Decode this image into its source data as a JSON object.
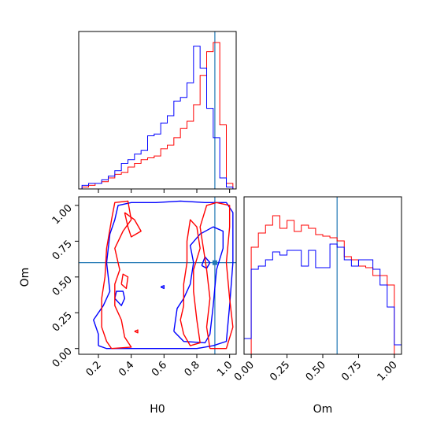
{
  "colors": {
    "series_a": "#ff0000",
    "series_b": "#0000ff",
    "truth": "#1f77b4",
    "axes": "#000000"
  },
  "chart_data": [
    {
      "panel": "H0 marginal",
      "type": "histogram",
      "x_range": [
        0.08,
        1.04
      ],
      "truth_x": 0.91,
      "bin_edges": [
        0.1,
        0.14,
        0.18,
        0.22,
        0.26,
        0.3,
        0.34,
        0.38,
        0.42,
        0.46,
        0.5,
        0.54,
        0.58,
        0.62,
        0.66,
        0.7,
        0.74,
        0.78,
        0.82,
        0.86,
        0.9,
        0.94,
        0.98,
        1.02
      ],
      "series": [
        {
          "color": "#ff0000",
          "values": [
            1,
            2,
            3,
            4,
            6,
            8,
            9,
            12,
            14,
            16,
            17,
            18,
            22,
            24,
            28,
            33,
            37,
            46,
            62,
            75,
            80,
            35,
            3
          ]
        },
        {
          "color": "#0000ff",
          "values": [
            2,
            3,
            3,
            5,
            7,
            10,
            14,
            16,
            19,
            21,
            29,
            30,
            36,
            40,
            48,
            50,
            58,
            78,
            66,
            44,
            28,
            6,
            1
          ]
        }
      ],
      "y_max": 86
    },
    {
      "panel": "Om vs H0 joint",
      "type": "contour",
      "x_range": [
        0.08,
        1.04
      ],
      "y_range": [
        -0.04,
        1.06
      ],
      "truth": {
        "x": 0.91,
        "y": 0.6
      },
      "xlabel": "H0",
      "ylabel": "Om",
      "x_ticks": [
        "0.2",
        "0.4",
        "0.6",
        "0.8",
        "1.0"
      ],
      "x_tick_values": [
        0.2,
        0.4,
        0.6,
        0.8,
        1.0
      ],
      "y_ticks": [
        "0.00",
        "0.25",
        "0.50",
        "0.75",
        "1.00"
      ],
      "y_tick_values": [
        0,
        0.25,
        0.5,
        0.75,
        1.0
      ],
      "contours": [
        {
          "color": "#0000ff",
          "points": [
            [
              0.2,
              0.02
            ],
            [
              0.25,
              0.0
            ],
            [
              0.5,
              0.0
            ],
            [
              0.62,
              0.0
            ],
            [
              0.8,
              0.0
            ],
            [
              0.9,
              0.02
            ],
            [
              0.98,
              0.05
            ],
            [
              1.0,
              0.3
            ],
            [
              1.02,
              0.6
            ],
            [
              1.02,
              0.95
            ],
            [
              0.98,
              1.02
            ],
            [
              0.85,
              1.02
            ],
            [
              0.7,
              1.03
            ],
            [
              0.55,
              1.02
            ],
            [
              0.4,
              1.02
            ],
            [
              0.32,
              1.0
            ],
            [
              0.3,
              0.9
            ],
            [
              0.27,
              0.8
            ],
            [
              0.25,
              0.6
            ],
            [
              0.27,
              0.4
            ],
            [
              0.23,
              0.3
            ],
            [
              0.17,
              0.2
            ],
            [
              0.2,
              0.1
            ],
            [
              0.2,
              0.02
            ]
          ]
        },
        {
          "color": "#0000ff",
          "points": [
            [
              0.66,
              0.12
            ],
            [
              0.72,
              0.05
            ],
            [
              0.85,
              0.04
            ],
            [
              0.88,
              0.1
            ],
            [
              0.9,
              0.3
            ],
            [
              0.92,
              0.55
            ],
            [
              0.96,
              0.7
            ],
            [
              0.96,
              0.82
            ],
            [
              0.9,
              0.85
            ],
            [
              0.82,
              0.8
            ],
            [
              0.76,
              0.72
            ],
            [
              0.78,
              0.6
            ],
            [
              0.76,
              0.45
            ],
            [
              0.72,
              0.35
            ],
            [
              0.68,
              0.28
            ],
            [
              0.66,
              0.12
            ]
          ]
        },
        {
          "color": "#0000ff",
          "points": [
            [
              0.3,
              0.35
            ],
            [
              0.34,
              0.3
            ],
            [
              0.36,
              0.35
            ],
            [
              0.35,
              0.4
            ],
            [
              0.31,
              0.4
            ],
            [
              0.3,
              0.35
            ]
          ]
        },
        {
          "color": "#0000ff",
          "points": [
            [
              0.58,
              0.43
            ],
            [
              0.6,
              0.42
            ],
            [
              0.6,
              0.44
            ],
            [
              0.58,
              0.43
            ]
          ]
        },
        {
          "color": "#0000ff",
          "points": [
            [
              0.83,
              0.58
            ],
            [
              0.86,
              0.56
            ],
            [
              0.88,
              0.6
            ],
            [
              0.85,
              0.64
            ],
            [
              0.83,
              0.58
            ]
          ]
        },
        {
          "color": "#ff0000",
          "points": [
            [
              0.28,
              0.0
            ],
            [
              0.4,
              0.01
            ],
            [
              0.36,
              0.08
            ],
            [
              0.34,
              0.2
            ],
            [
              0.3,
              0.3
            ],
            [
              0.3,
              0.45
            ],
            [
              0.33,
              0.55
            ],
            [
              0.3,
              0.7
            ],
            [
              0.35,
              0.82
            ],
            [
              0.4,
              0.9
            ],
            [
              0.38,
              1.03
            ],
            [
              0.3,
              1.02
            ],
            [
              0.28,
              0.9
            ],
            [
              0.25,
              0.7
            ],
            [
              0.24,
              0.5
            ],
            [
              0.22,
              0.35
            ],
            [
              0.22,
              0.15
            ],
            [
              0.25,
              0.05
            ],
            [
              0.28,
              0.0
            ]
          ]
        },
        {
          "color": "#ff0000",
          "points": [
            [
              0.36,
              0.95
            ],
            [
              0.42,
              0.9
            ],
            [
              0.46,
              0.82
            ],
            [
              0.4,
              0.78
            ],
            [
              0.38,
              0.85
            ],
            [
              0.36,
              0.95
            ]
          ]
        },
        {
          "color": "#ff0000",
          "points": [
            [
              0.88,
              0.0
            ],
            [
              0.98,
              0.0
            ],
            [
              1.02,
              0.15
            ],
            [
              1.0,
              0.35
            ],
            [
              0.98,
              0.6
            ],
            [
              1.0,
              0.85
            ],
            [
              1.0,
              1.0
            ],
            [
              0.92,
              1.02
            ],
            [
              0.86,
              1.0
            ],
            [
              0.82,
              0.85
            ],
            [
              0.84,
              0.7
            ],
            [
              0.86,
              0.55
            ],
            [
              0.88,
              0.35
            ],
            [
              0.86,
              0.15
            ],
            [
              0.88,
              0.0
            ]
          ]
        },
        {
          "color": "#ff0000",
          "points": [
            [
              0.72,
              0.1
            ],
            [
              0.76,
              0.02
            ],
            [
              0.82,
              0.04
            ],
            [
              0.8,
              0.2
            ],
            [
              0.78,
              0.4
            ],
            [
              0.78,
              0.55
            ],
            [
              0.82,
              0.7
            ],
            [
              0.8,
              0.85
            ],
            [
              0.76,
              0.9
            ],
            [
              0.74,
              0.75
            ],
            [
              0.74,
              0.6
            ],
            [
              0.72,
              0.45
            ],
            [
              0.72,
              0.3
            ],
            [
              0.7,
              0.2
            ],
            [
              0.72,
              0.1
            ]
          ]
        },
        {
          "color": "#ff0000",
          "points": [
            [
              0.34,
              0.45
            ],
            [
              0.37,
              0.42
            ],
            [
              0.38,
              0.5
            ],
            [
              0.35,
              0.52
            ],
            [
              0.34,
              0.45
            ]
          ]
        },
        {
          "color": "#ff0000",
          "points": [
            [
              0.42,
              0.12
            ],
            [
              0.44,
              0.11
            ],
            [
              0.44,
              0.13
            ],
            [
              0.42,
              0.12
            ]
          ]
        }
      ]
    },
    {
      "panel": "Om marginal",
      "type": "histogram",
      "x_range": [
        -0.05,
        1.05
      ],
      "truth_x": 0.6,
      "xlabel": "Om",
      "x_ticks": [
        "0.00",
        "0.25",
        "0.50",
        "0.75",
        "1.00"
      ],
      "x_tick_values": [
        0,
        0.25,
        0.5,
        0.75,
        1.0
      ],
      "bin_edges": [
        -0.05,
        0.0,
        0.05,
        0.1,
        0.15,
        0.2,
        0.25,
        0.3,
        0.35,
        0.4,
        0.45,
        0.5,
        0.55,
        0.6,
        0.65,
        0.7,
        0.75,
        0.8,
        0.85,
        0.9,
        0.95,
        1.0,
        1.05
      ],
      "series": [
        {
          "color": "#ff0000",
          "values": [
            0,
            68,
            77,
            82,
            88,
            80,
            85,
            78,
            82,
            80,
            76,
            75,
            74,
            72,
            62,
            60,
            56,
            55,
            50,
            50,
            44,
            0
          ]
        },
        {
          "color": "#0000ff",
          "values": [
            10,
            54,
            56,
            60,
            65,
            63,
            66,
            66,
            56,
            66,
            55,
            55,
            70,
            68,
            60,
            56,
            60,
            60,
            54,
            44,
            30,
            6
          ]
        }
      ],
      "y_max": 100
    }
  ]
}
